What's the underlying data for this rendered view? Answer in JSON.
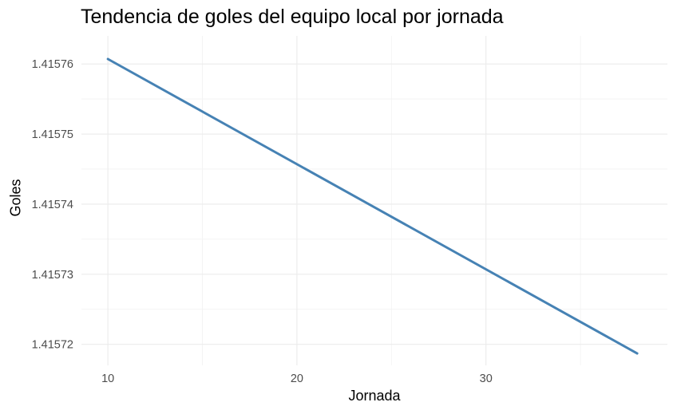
{
  "chart_data": {
    "type": "line",
    "title": "Tendencia de goles del equipo local por jornada",
    "xlabel": "Jornada",
    "ylabel": "Goles",
    "xlim": [
      8.6,
      39.6
    ],
    "ylim": [
      1.415717,
      1.415764
    ],
    "x_ticks": [
      10,
      20,
      30
    ],
    "x_tick_labels": [
      "10",
      "20",
      "30"
    ],
    "x_minor_gridlines": [
      15,
      25,
      35
    ],
    "y_ticks": [
      1.41572,
      1.41573,
      1.41574,
      1.41575,
      1.41576
    ],
    "y_tick_labels": [
      "1.41572",
      "1.41573",
      "1.41574",
      "1.41575",
      "1.41576"
    ],
    "y_minor_gridlines": [
      1.415725,
      1.415735,
      1.415745,
      1.415755
    ],
    "grid": true,
    "legend": "none",
    "series": [
      {
        "color": "#4682b4",
        "x": [
          10,
          38
        ],
        "y": [
          1.4157607,
          1.4157187
        ]
      }
    ]
  }
}
